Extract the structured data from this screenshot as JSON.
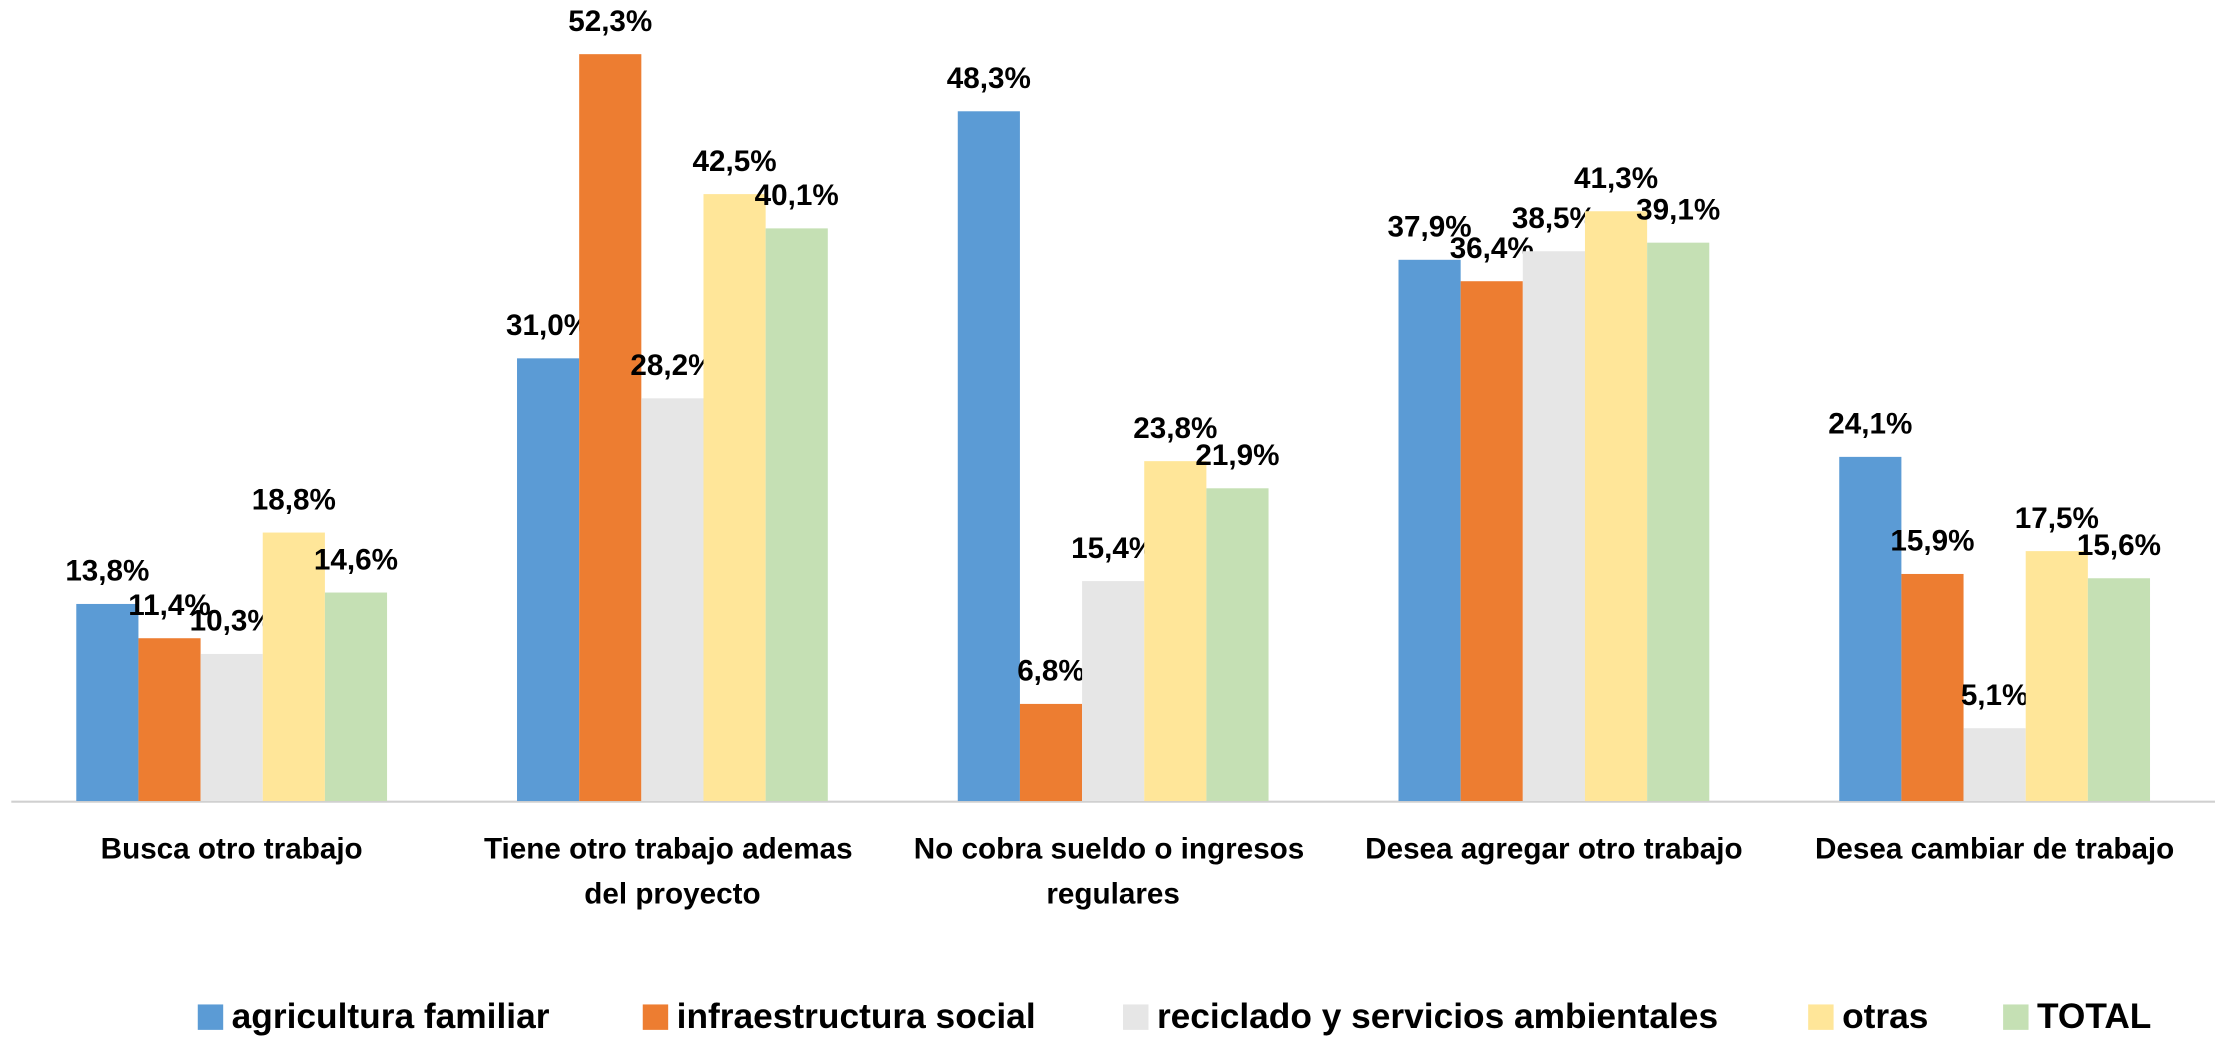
{
  "chart_data": {
    "type": "bar",
    "categories": [
      "Busca otro trabajo",
      "Tiene otro trabajo ademas del proyecto",
      "No cobra sueldo o ingresos regulares",
      "Desea agregar otro trabajo",
      "Desea cambiar de trabajo"
    ],
    "series": [
      {
        "name": "agricultura familiar",
        "color": "#5b9bd5",
        "values": [
          13.8,
          31.0,
          48.3,
          37.9,
          24.1
        ],
        "value_labels": [
          "13,8%",
          "31,0%",
          "48,3%",
          "37,9%",
          "24,1%"
        ]
      },
      {
        "name": "infraestructura social",
        "color": "#ed7d31",
        "values": [
          11.4,
          52.3,
          6.8,
          36.4,
          15.9
        ],
        "value_labels": [
          "11,4%",
          "52,3%",
          "6,8%",
          "36,4%",
          "15,9%"
        ]
      },
      {
        "name": "reciclado y servicios ambientales",
        "color": "#e6e6e6",
        "values": [
          10.3,
          28.2,
          15.4,
          38.5,
          5.1
        ],
        "value_labels": [
          "10,3%",
          "28,2%",
          "15,4%",
          "38,5%",
          "5,1%"
        ]
      },
      {
        "name": "otras",
        "color": "#ffe699",
        "values": [
          18.8,
          42.5,
          23.8,
          41.3,
          17.5
        ],
        "value_labels": [
          "18,8%",
          "42,5%",
          "23,8%",
          "41,3%",
          "17,5%"
        ]
      },
      {
        "name": "TOTAL",
        "color": "#c5e0b4",
        "values": [
          14.6,
          40.1,
          21.9,
          39.1,
          15.6
        ],
        "value_labels": [
          "14,6%",
          "40,1%",
          "21,9%",
          "39,1%",
          "15,6%"
        ]
      }
    ],
    "ylim": [
      0,
      55
    ],
    "legend": "bottom"
  }
}
